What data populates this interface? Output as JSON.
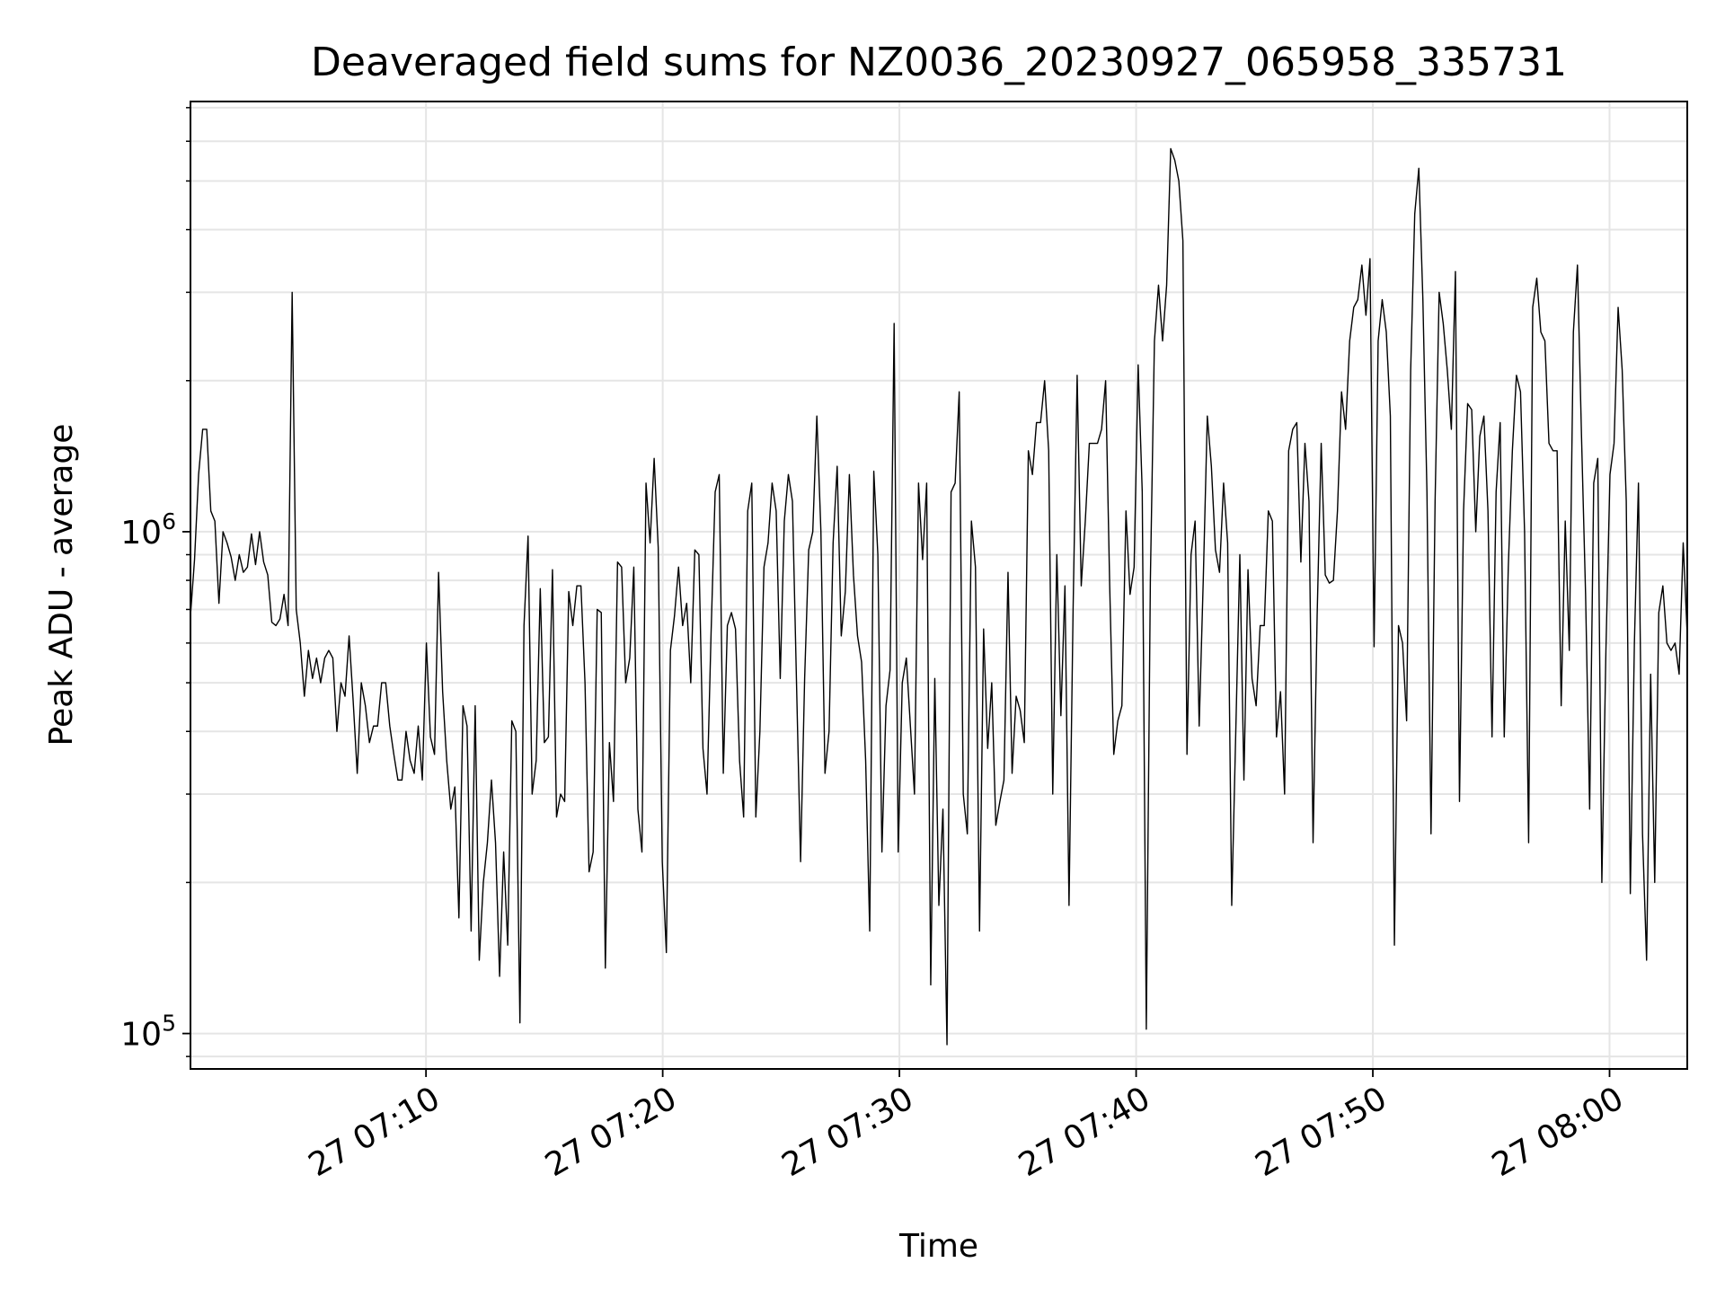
{
  "chart_data": {
    "type": "line",
    "title": "Deaveraged field sums for NZ0036_20230927_065958_335731",
    "xlabel": "Time",
    "ylabel": "Peak ADU - average",
    "y_scale": "log",
    "ylim": [
      85000,
      7200000
    ],
    "xlim": [
      "2023-09-27 07:00:03",
      "2023-09-27 08:03:17"
    ],
    "grid": true,
    "line_color": "#000000",
    "grid_color": "#e5e5e5",
    "x_ticks": [
      {
        "value": "2023-09-27 07:10:00",
        "label": "27 07:10"
      },
      {
        "value": "2023-09-27 07:20:00",
        "label": "27 07:20"
      },
      {
        "value": "2023-09-27 07:30:00",
        "label": "27 07:30"
      },
      {
        "value": "2023-09-27 07:40:00",
        "label": "27 07:40"
      },
      {
        "value": "2023-09-27 07:50:00",
        "label": "27 07:50"
      },
      {
        "value": "2023-09-27 08:00:00",
        "label": "27 08:00"
      }
    ],
    "y_major_ticks": [
      {
        "value": 100000,
        "base": "10",
        "exp": "5"
      },
      {
        "value": 1000000,
        "base": "10",
        "exp": "6"
      }
    ],
    "y_minor_ticks": [
      90000,
      200000,
      300000,
      400000,
      500000,
      600000,
      700000,
      800000,
      900000,
      2000000,
      3000000,
      4000000,
      5000000,
      6000000,
      7000000
    ],
    "series": [
      {
        "x_start": "2023-09-27 07:00:03",
        "x_end": "2023-09-27 08:03:17",
        "values": [
          680000,
          880000,
          1300000,
          1600000,
          1600000,
          1100000,
          1050000,
          720000,
          1000000,
          950000,
          890000,
          800000,
          900000,
          830000,
          850000,
          990000,
          860000,
          1000000,
          870000,
          820000,
          660000,
          650000,
          670000,
          750000,
          650000,
          3000000,
          700000,
          600000,
          470000,
          580000,
          510000,
          560000,
          500000,
          560000,
          580000,
          560000,
          400000,
          500000,
          470000,
          620000,
          460000,
          330000,
          500000,
          450000,
          380000,
          410000,
          410000,
          500000,
          500000,
          410000,
          360000,
          320000,
          320000,
          400000,
          350000,
          330000,
          410000,
          320000,
          600000,
          390000,
          360000,
          830000,
          480000,
          350000,
          280000,
          310000,
          170000,
          450000,
          410000,
          160000,
          450000,
          140000,
          200000,
          240000,
          320000,
          240000,
          130000,
          230000,
          150000,
          420000,
          400000,
          105000,
          650000,
          980000,
          300000,
          350000,
          770000,
          380000,
          390000,
          840000,
          270000,
          300000,
          290000,
          760000,
          650000,
          780000,
          780000,
          500000,
          210000,
          230000,
          700000,
          690000,
          135000,
          380000,
          290000,
          870000,
          850000,
          500000,
          560000,
          850000,
          280000,
          230000,
          1250000,
          950000,
          1400000,
          930000,
          220000,
          145000,
          580000,
          680000,
          850000,
          650000,
          720000,
          500000,
          920000,
          900000,
          370000,
          300000,
          630000,
          1200000,
          1300000,
          330000,
          650000,
          690000,
          640000,
          350000,
          270000,
          1100000,
          1250000,
          270000,
          400000,
          850000,
          950000,
          1250000,
          1100000,
          510000,
          1050000,
          1300000,
          1150000,
          500000,
          220000,
          510000,
          920000,
          1000000,
          1700000,
          1000000,
          330000,
          400000,
          950000,
          1350000,
          620000,
          760000,
          1300000,
          820000,
          620000,
          550000,
          350000,
          160000,
          1320000,
          900000,
          230000,
          450000,
          530000,
          2600000,
          230000,
          500000,
          560000,
          410000,
          300000,
          1250000,
          880000,
          1250000,
          125000,
          510000,
          180000,
          280000,
          95000,
          1200000,
          1250000,
          1900000,
          300000,
          250000,
          1050000,
          850000,
          160000,
          640000,
          370000,
          500000,
          260000,
          290000,
          320000,
          830000,
          330000,
          470000,
          440000,
          380000,
          1450000,
          1300000,
          1650000,
          1650000,
          2000000,
          1450000,
          300000,
          900000,
          430000,
          780000,
          180000,
          700000,
          2050000,
          780000,
          1050000,
          1500000,
          1500000,
          1500000,
          1600000,
          2000000,
          780000,
          360000,
          420000,
          450000,
          1100000,
          750000,
          850000,
          2150000,
          1200000,
          102000,
          800000,
          2400000,
          3100000,
          2400000,
          3100000,
          5800000,
          5500000,
          5000000,
          3800000,
          360000,
          900000,
          1050000,
          410000,
          800000,
          1700000,
          1350000,
          920000,
          830000,
          1250000,
          950000,
          180000,
          400000,
          900000,
          320000,
          840000,
          510000,
          450000,
          650000,
          650000,
          1100000,
          1050000,
          390000,
          480000,
          300000,
          1450000,
          1600000,
          1650000,
          870000,
          1500000,
          1150000,
          240000,
          680000,
          1500000,
          820000,
          790000,
          800000,
          1100000,
          1900000,
          1600000,
          2400000,
          2800000,
          2900000,
          3400000,
          2700000,
          3500000,
          590000,
          2400000,
          2900000,
          2500000,
          1700000,
          150000,
          650000,
          600000,
          420000,
          2100000,
          4300000,
          5300000,
          2900000,
          1200000,
          250000,
          1150000,
          3000000,
          2600000,
          2100000,
          1600000,
          3300000,
          290000,
          1100000,
          1800000,
          1750000,
          1000000,
          1550000,
          1700000,
          1100000,
          390000,
          1200000,
          1650000,
          390000,
          850000,
          1450000,
          2050000,
          1900000,
          1000000,
          240000,
          2800000,
          3200000,
          2500000,
          2400000,
          1500000,
          1450000,
          1450000,
          450000,
          1050000,
          580000,
          2500000,
          3400000,
          1550000,
          750000,
          280000,
          1250000,
          1400000,
          200000,
          580000,
          1300000,
          1500000,
          2800000,
          2100000,
          1150000,
          190000,
          600000,
          1250000,
          250000,
          140000,
          520000,
          200000,
          690000,
          780000,
          600000,
          580000,
          600000,
          520000,
          950000,
          620000
        ]
      }
    ]
  }
}
